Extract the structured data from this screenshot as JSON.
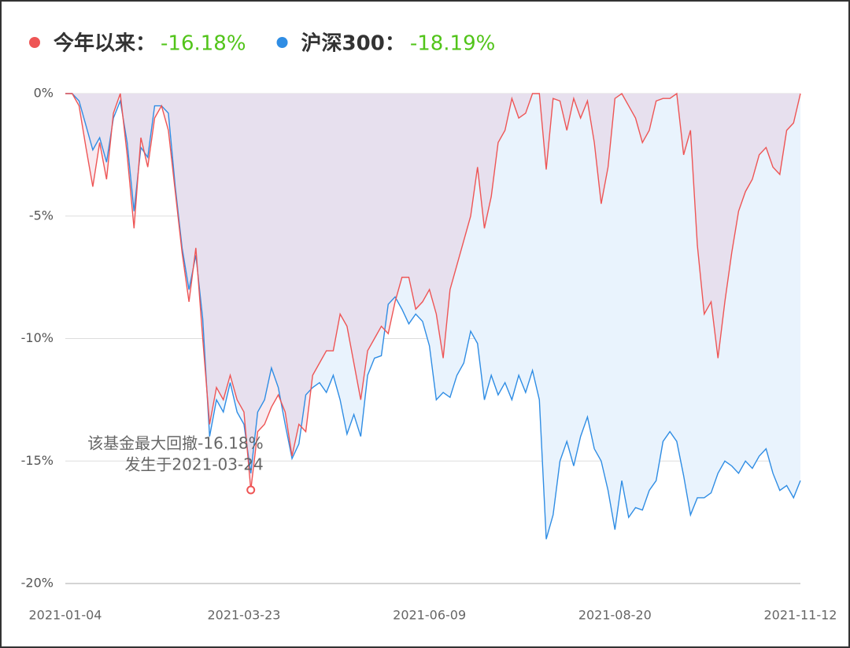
{
  "chart_data": {
    "type": "line",
    "series": [
      {
        "name": "今年以来：",
        "label": "-16.18%",
        "color": "#ee5555",
        "fill": "rgba(225,160,185,0.22)",
        "values": [
          0,
          0,
          -0.5,
          -2.2,
          -3.8,
          -2.0,
          -3.5,
          -0.8,
          0,
          -2.5,
          -5.5,
          -1.8,
          -3.0,
          -1.0,
          -0.5,
          -1.5,
          -4.0,
          -6.5,
          -8.5,
          -6.3,
          -10.0,
          -13.5,
          -12.0,
          -12.5,
          -11.5,
          -12.5,
          -13.0,
          -16.18,
          -13.8,
          -13.5,
          -12.8,
          -12.3,
          -13.0,
          -14.8,
          -13.5,
          -13.8,
          -11.5,
          -11.0,
          -10.5,
          -10.5,
          -9.0,
          -9.5,
          -11.0,
          -12.5,
          -10.5,
          -10.0,
          -9.5,
          -9.8,
          -8.5,
          -7.5,
          -7.5,
          -8.8,
          -8.5,
          -8.0,
          -9.0,
          -10.8,
          -8.0,
          -7.0,
          -6.0,
          -5.0,
          -3.0,
          -5.5,
          -4.2,
          -2.0,
          -1.5,
          -0.2,
          -1.0,
          -0.8,
          0,
          0,
          -3.1,
          -0.2,
          -0.3,
          -1.5,
          -0.2,
          -1.0,
          -0.3,
          -2.0,
          -4.5,
          -3.0,
          -0.2,
          0,
          -0.5,
          -1.0,
          -2.0,
          -1.5,
          -0.3,
          -0.2,
          -0.2,
          0,
          -2.5,
          -1.5,
          -6.2,
          -9.0,
          -8.5,
          -10.8,
          -8.5,
          -6.5,
          -4.8,
          -4.0,
          -3.5,
          -2.5,
          -2.2,
          -3.0,
          -3.3,
          -1.5,
          -1.2,
          0
        ]
      },
      {
        "name": "沪深300：",
        "label": "-18.19%",
        "color": "#2f8de4",
        "fill": "#e9f3fd",
        "values": [
          0,
          0,
          -0.3,
          -1.3,
          -2.3,
          -1.8,
          -2.8,
          -1.0,
          -0.3,
          -2.0,
          -4.8,
          -2.2,
          -2.6,
          -0.5,
          -0.5,
          -0.8,
          -3.8,
          -6.3,
          -8.0,
          -6.6,
          -9.2,
          -14.0,
          -12.5,
          -13.0,
          -11.8,
          -13.0,
          -13.5,
          -15.5,
          -13.0,
          -12.5,
          -11.2,
          -12.0,
          -13.5,
          -14.9,
          -14.3,
          -12.3,
          -12.0,
          -11.8,
          -12.2,
          -11.5,
          -12.5,
          -13.9,
          -13.1,
          -14.0,
          -11.5,
          -10.8,
          -10.7,
          -8.6,
          -8.3,
          -8.8,
          -9.4,
          -9.0,
          -9.3,
          -10.3,
          -12.5,
          -12.2,
          -12.4,
          -11.5,
          -11.0,
          -9.7,
          -10.2,
          -12.5,
          -11.5,
          -12.3,
          -11.8,
          -12.5,
          -11.5,
          -12.2,
          -11.3,
          -12.5,
          -18.19,
          -17.2,
          -15.0,
          -14.2,
          -15.2,
          -14.0,
          -13.2,
          -14.5,
          -15.0,
          -16.2,
          -17.8,
          -15.8,
          -17.3,
          -16.9,
          -17.0,
          -16.2,
          -15.8,
          -14.2,
          -13.8,
          -14.2,
          -15.6,
          -17.2,
          -16.5,
          -16.5,
          -16.3,
          -15.5,
          -15.0,
          -15.2,
          -15.5,
          -15.0,
          -15.3,
          -14.8,
          -14.5,
          -15.5,
          -16.2,
          -16.0,
          -16.5,
          -15.8
        ]
      }
    ],
    "categories": [
      "2021-01-04",
      null,
      null,
      null,
      null,
      null,
      null,
      null,
      null,
      null,
      null,
      null,
      null,
      null,
      null,
      null,
      null,
      null,
      null,
      null,
      null,
      null,
      null,
      null,
      null,
      null,
      "2021-03-23",
      null,
      null,
      null,
      null,
      null,
      null,
      null,
      null,
      null,
      null,
      null,
      null,
      null,
      null,
      null,
      null,
      null,
      null,
      null,
      null,
      null,
      null,
      null,
      null,
      null,
      null,
      "2021-06-09",
      null,
      null,
      null,
      null,
      null,
      null,
      null,
      null,
      null,
      null,
      null,
      null,
      null,
      null,
      null,
      null,
      null,
      null,
      null,
      null,
      null,
      null,
      null,
      null,
      null,
      null,
      "2021-08-20",
      null,
      null,
      null,
      null,
      null,
      null,
      null,
      null,
      null,
      null,
      null,
      null,
      null,
      null,
      null,
      null,
      null,
      null,
      null,
      null,
      null,
      null,
      null,
      null,
      null,
      null,
      "2021-11-12"
    ],
    "ylim": [
      -20,
      0
    ],
    "yticks": [
      {
        "value": 0,
        "label": "0%"
      },
      {
        "value": -5,
        "label": "-5%"
      },
      {
        "value": -10,
        "label": "-10%"
      },
      {
        "value": -15,
        "label": "-15%"
      },
      {
        "value": -20,
        "label": "-20%"
      }
    ],
    "grid": true,
    "annotation": [
      "该基金最大回撤-16.18%",
      "发生于2021-03-24"
    ]
  }
}
